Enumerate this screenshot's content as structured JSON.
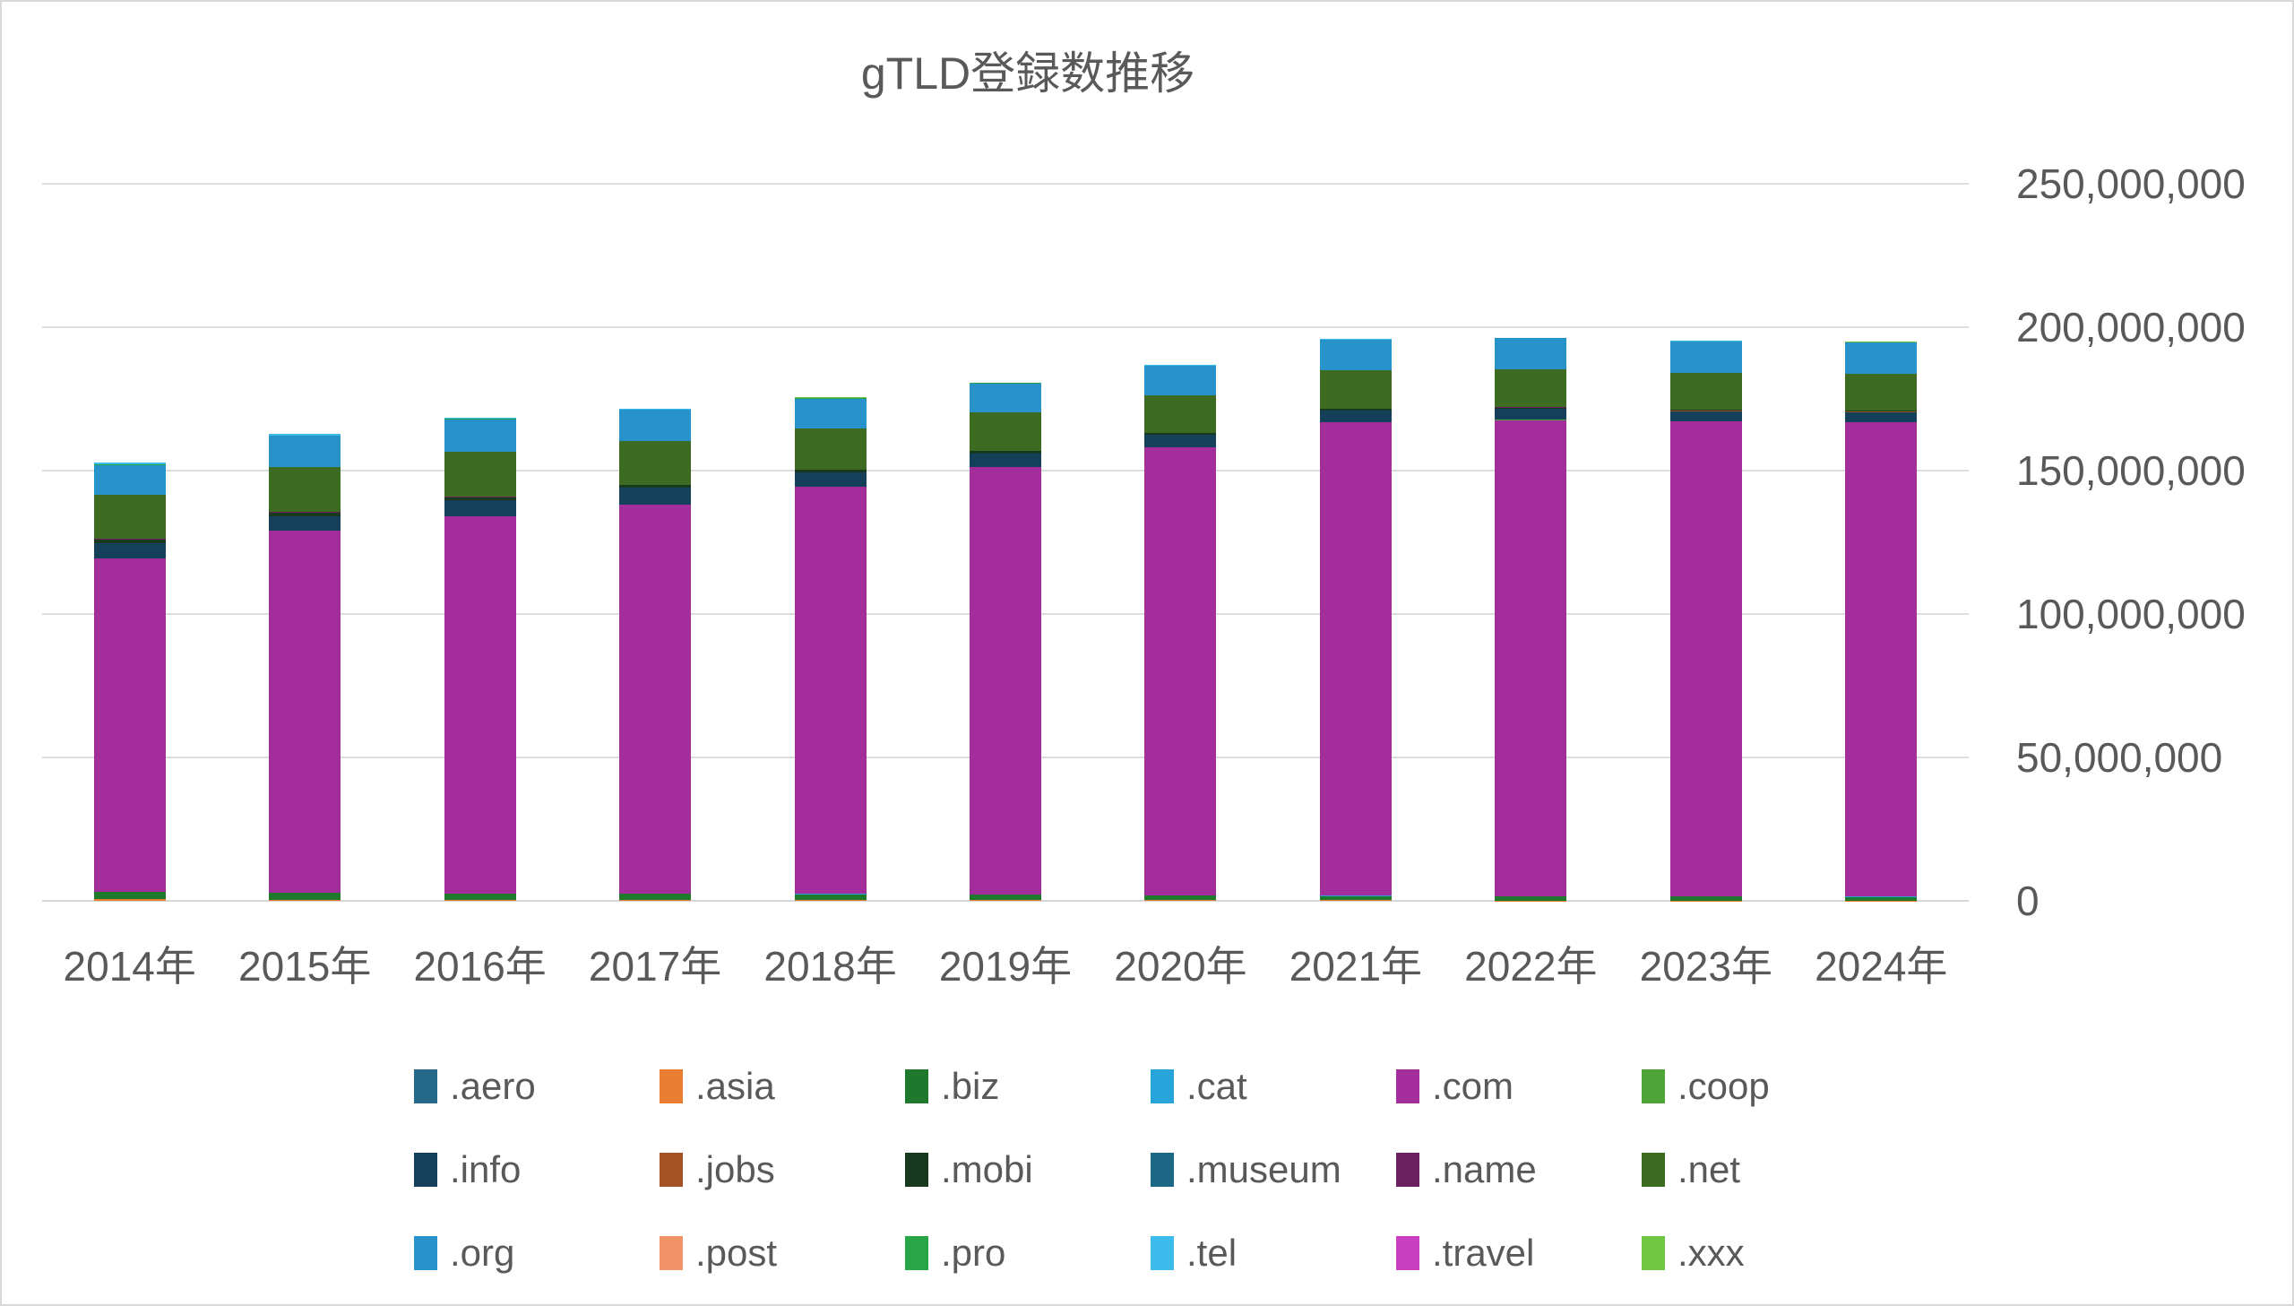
{
  "title": "gTLD登録数推移",
  "chart_data": {
    "type": "bar",
    "subtype": "stacked-vertical",
    "title": "gTLD登録数推移",
    "xlabel": "",
    "ylabel": "",
    "value_unit": "millions",
    "ylim_millions": [
      0,
      250
    ],
    "grid": true,
    "axis_side": "right",
    "legend_position": "bottom",
    "categories": [
      "2014年",
      "2015年",
      "2016年",
      "2017年",
      "2018年",
      "2019年",
      "2020年",
      "2021年",
      "2022年",
      "2023年",
      "2024年"
    ],
    "yticks": [
      {
        "label": "0",
        "value": 0
      },
      {
        "label": "50,000,000",
        "value": 50
      },
      {
        "label": "100,000,000",
        "value": 100
      },
      {
        "label": "150,000,000",
        "value": 150
      },
      {
        "label": "200,000,000",
        "value": 200
      },
      {
        "label": "250,000,000",
        "value": 250
      }
    ],
    "series": [
      {
        "name": ".aero",
        "color": "#24688a",
        "values": [
          0.01,
          0.01,
          0.01,
          0.01,
          0.01,
          0.01,
          0.01,
          0.01,
          0.01,
          0.01,
          0.01
        ]
      },
      {
        "name": ".asia",
        "color": "#e97e32",
        "values": [
          0.5,
          0.35,
          0.3,
          0.25,
          0.22,
          0.2,
          0.18,
          0.16,
          0.15,
          0.14,
          0.13
        ]
      },
      {
        "name": ".biz",
        "color": "#1e792c",
        "values": [
          2.7,
          2.5,
          2.2,
          2.2,
          2.1,
          2.0,
          1.7,
          1.5,
          1.4,
          1.3,
          1.2
        ]
      },
      {
        "name": ".cat",
        "color": "#27a5db",
        "values": [
          0.08,
          0.09,
          0.1,
          0.11,
          0.11,
          0.11,
          0.11,
          0.11,
          0.11,
          0.11,
          0.11
        ]
      },
      {
        "name": ".com",
        "color": "#a32d9b",
        "values": [
          116,
          126,
          131.5,
          135.5,
          142,
          149,
          156,
          165,
          166,
          165.5,
          165.5
        ]
      },
      {
        "name": ".coop",
        "color": "#4ea437",
        "values": [
          0.01,
          0.01,
          0.01,
          0.01,
          0.01,
          0.01,
          0.01,
          0.01,
          0.01,
          0.01,
          0.01
        ]
      },
      {
        "name": ".info",
        "color": "#15405a",
        "values": [
          5.5,
          5.2,
          5.5,
          5.9,
          4.9,
          4.7,
          4.4,
          4.2,
          3.9,
          3.7,
          3.5
        ]
      },
      {
        "name": ".jobs",
        "color": "#a45123",
        "values": [
          0.04,
          0.05,
          0.05,
          0.05,
          0.05,
          0.05,
          0.05,
          0.05,
          0.05,
          0.05,
          0.05
        ]
      },
      {
        "name": ".mobi",
        "color": "#17391d",
        "values": [
          1.2,
          1.1,
          1.0,
          0.9,
          0.8,
          0.7,
          0.6,
          0.5,
          0.4,
          0.35,
          0.3
        ]
      },
      {
        "name": ".museum",
        "color": "#1e6887",
        "values": [
          0.01,
          0.01,
          0.01,
          0.01,
          0.01,
          0.01,
          0.01,
          0.01,
          0.01,
          0.01,
          0.01
        ]
      },
      {
        "name": ".name",
        "color": "#6b2060",
        "values": [
          0.2,
          0.18,
          0.17,
          0.16,
          0.15,
          0.14,
          0.13,
          0.12,
          0.11,
          0.1,
          0.1
        ]
      },
      {
        "name": ".net",
        "color": "#3d6b21",
        "values": [
          15.2,
          15.8,
          15.8,
          15.2,
          14.5,
          13.4,
          13.2,
          13.4,
          13.2,
          12.9,
          12.8
        ]
      },
      {
        "name": ".org",
        "color": "#2892cb",
        "values": [
          10.5,
          10.9,
          11.3,
          10.9,
          10.3,
          10.1,
          10.2,
          10.6,
          10.8,
          10.9,
          11.0
        ]
      },
      {
        "name": ".post",
        "color": "#f09468",
        "values": [
          0.01,
          0.01,
          0.01,
          0.01,
          0.01,
          0.01,
          0.01,
          0.01,
          0.01,
          0.01,
          0.01
        ]
      },
      {
        "name": ".pro",
        "color": "#28a547",
        "values": [
          0.15,
          0.14,
          0.13,
          0.12,
          0.11,
          0.1,
          0.09,
          0.08,
          0.07,
          0.06,
          0.06
        ]
      },
      {
        "name": ".tel",
        "color": "#3cbcec",
        "values": [
          0.6,
          0.4,
          0.3,
          0.2,
          0.15,
          0.12,
          0.1,
          0.08,
          0.06,
          0.05,
          0.05
        ]
      },
      {
        "name": ".travel",
        "color": "#c93fc0",
        "values": [
          0.02,
          0.02,
          0.02,
          0.02,
          0.02,
          0.02,
          0.02,
          0.02,
          0.02,
          0.02,
          0.02
        ]
      },
      {
        "name": ".xxx",
        "color": "#70c640",
        "values": [
          0.1,
          0.1,
          0.1,
          0.1,
          0.09,
          0.08,
          0.07,
          0.07,
          0.06,
          0.06,
          0.05
        ]
      }
    ]
  }
}
